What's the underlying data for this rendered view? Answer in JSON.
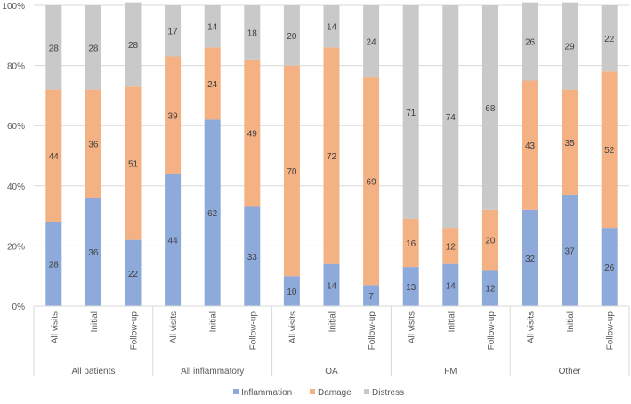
{
  "chart_data": {
    "type": "bar",
    "stacked": true,
    "title": "",
    "xlabel": "",
    "ylabel": "",
    "ylim": [
      0,
      100
    ],
    "yticks": [
      "0%",
      "20%",
      "40%",
      "60%",
      "80%",
      "100%"
    ],
    "grid": true,
    "legend_position": "bottom",
    "groups": [
      {
        "name": "All patients",
        "categories": [
          "All visits",
          "Initial",
          "Follow-up"
        ]
      },
      {
        "name": "All inflammatory",
        "categories": [
          "All visits",
          "Initial",
          "Follow-up"
        ]
      },
      {
        "name": "OA",
        "categories": [
          "All visits",
          "Initial",
          "Follow-up"
        ]
      },
      {
        "name": "FM",
        "categories": [
          "All visits",
          "Initial",
          "Follow-up"
        ]
      },
      {
        "name": "Other",
        "categories": [
          "All visits",
          "Initial",
          "Follow-up"
        ]
      }
    ],
    "series": [
      {
        "name": "Inflammation",
        "color": "#8eaadb",
        "values": [
          28,
          36,
          22,
          44,
          62,
          33,
          10,
          14,
          7,
          13,
          14,
          12,
          32,
          37,
          26
        ]
      },
      {
        "name": "Damage",
        "color": "#f4b183",
        "values": [
          44,
          36,
          51,
          39,
          24,
          49,
          70,
          72,
          69,
          16,
          12,
          20,
          43,
          35,
          52
        ]
      },
      {
        "name": "Distress",
        "color": "#c9c9c9",
        "values": [
          28,
          28,
          28,
          17,
          14,
          18,
          20,
          14,
          24,
          71,
          74,
          68,
          26,
          29,
          22
        ]
      }
    ]
  }
}
